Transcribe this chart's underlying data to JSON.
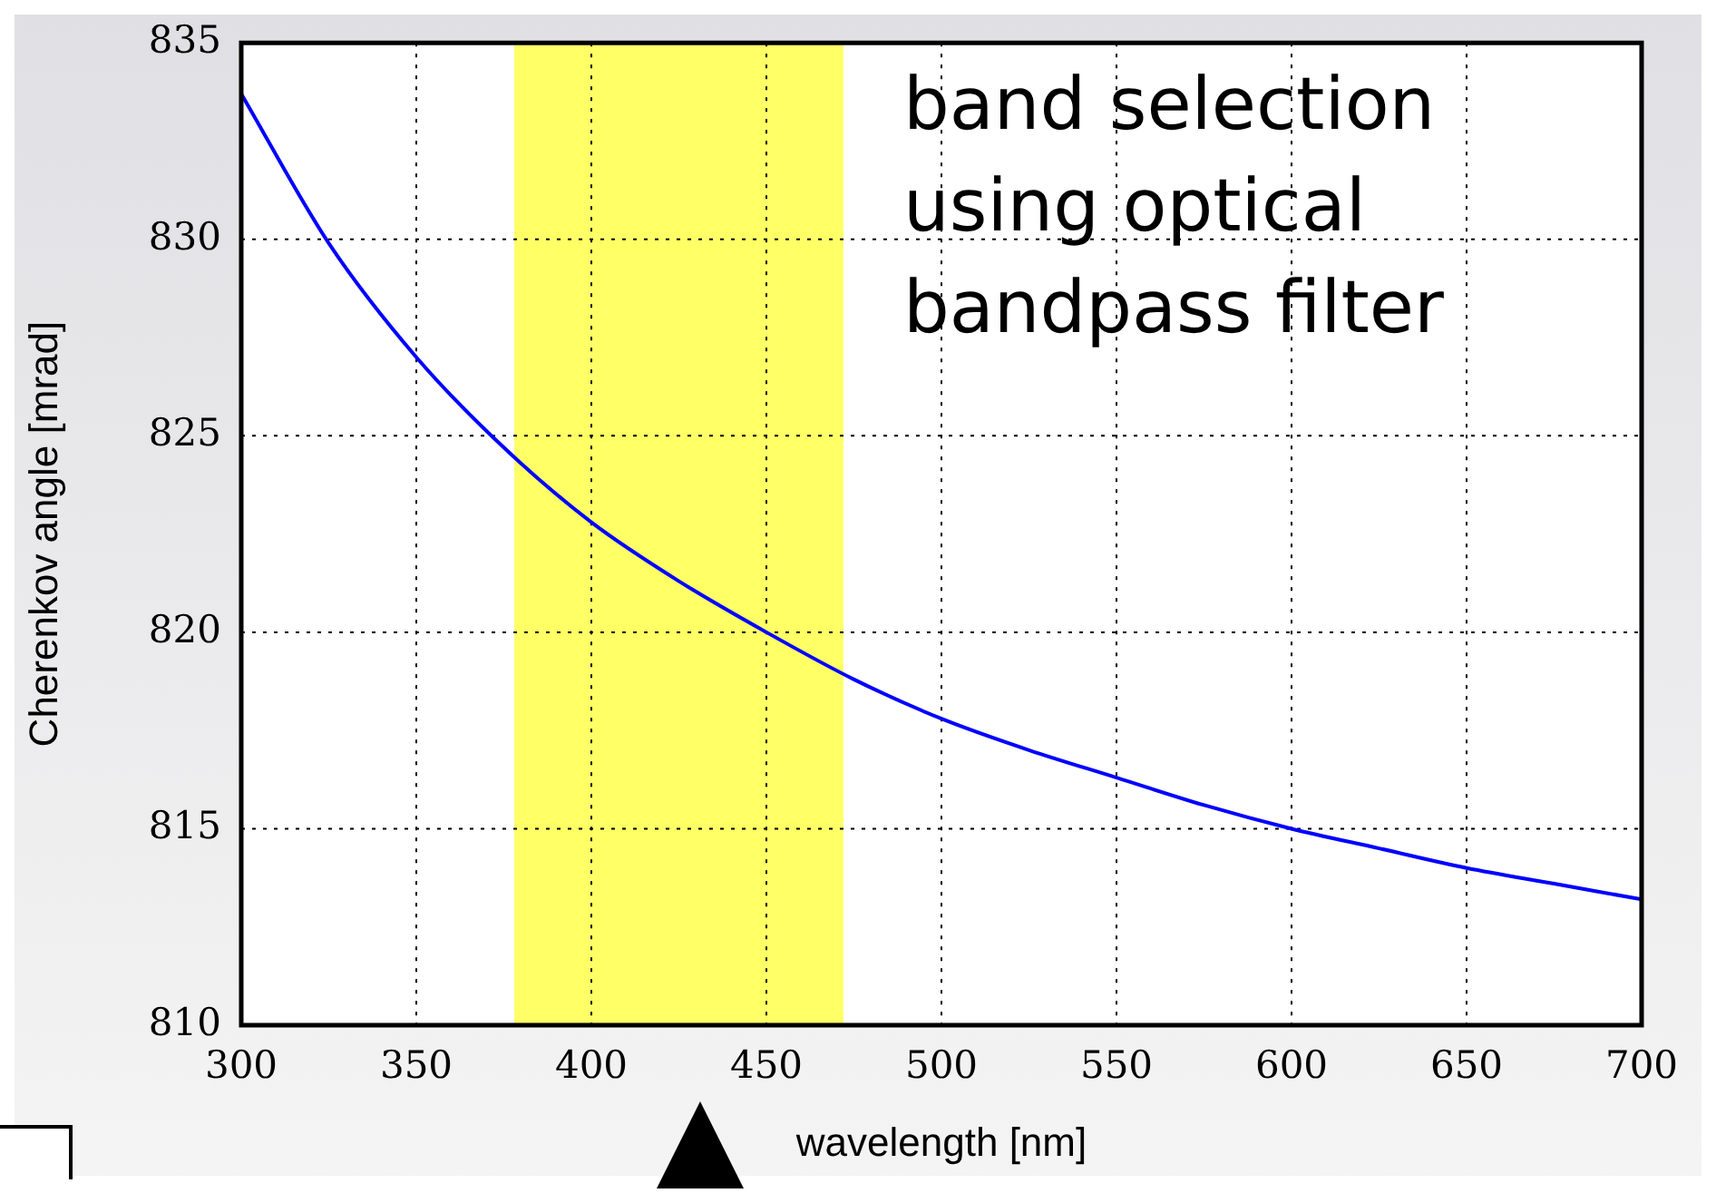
{
  "chart_data": {
    "type": "line",
    "xlabel": "wavelength [nm]",
    "ylabel": "Cherenkov angle [mrad]",
    "x": [
      300,
      325,
      350,
      375,
      400,
      425,
      450,
      475,
      500,
      525,
      550,
      575,
      600,
      625,
      650,
      675,
      700
    ],
    "series": [
      {
        "color": "#0000ff",
        "values": [
          833.7,
          829.9,
          827.0,
          824.7,
          822.8,
          821.3,
          820.0,
          818.8,
          817.8,
          817.0,
          816.3,
          815.6,
          815.0,
          814.5,
          814.0,
          813.6,
          813.2
        ]
      }
    ],
    "xlim": [
      300,
      700
    ],
    "xticks": [
      300,
      350,
      400,
      450,
      500,
      550,
      600,
      650,
      700
    ],
    "ylim": [
      810,
      835
    ],
    "yticks": [
      810,
      815,
      820,
      825,
      830,
      835
    ],
    "grid": true,
    "marker": "none",
    "line_style": "solid",
    "bands": [
      {
        "axis": "x",
        "from": 378,
        "to": 472,
        "color": "#ffff66"
      }
    ],
    "annotations": [
      "band selection using optical bandpass filter"
    ]
  }
}
